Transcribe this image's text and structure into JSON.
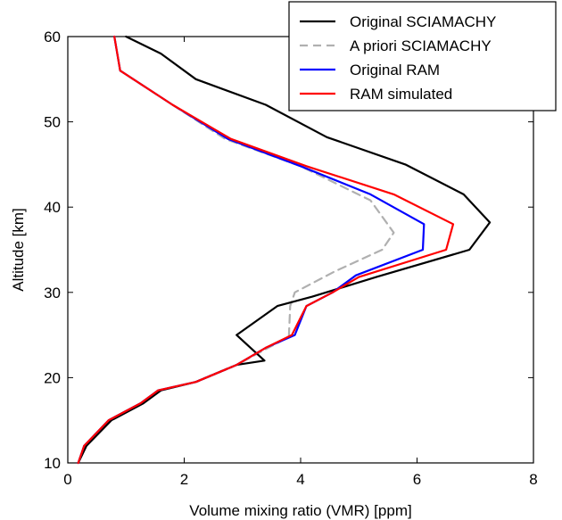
{
  "chart_data": {
    "type": "line",
    "xlabel": "Volume mixing ratio (VMR) [ppm]",
    "ylabel": "Altitude [km]",
    "xlim": [
      0,
      8
    ],
    "ylim": [
      10,
      60
    ],
    "xticks": [
      0,
      2,
      4,
      6,
      8
    ],
    "yticks": [
      10,
      20,
      30,
      40,
      50,
      60
    ],
    "grid": false,
    "legend_position": "top-right",
    "series": [
      {
        "name": "Original SCIAMACHY",
        "color": "#000000",
        "style": "solid",
        "x": [
          0.18,
          0.32,
          0.75,
          1.3,
          1.6,
          2.2,
          2.9,
          3.38,
          2.9,
          3.6,
          4.2,
          5.3,
          6.9,
          7.25,
          6.8,
          5.8,
          4.45,
          3.4,
          2.2,
          1.6,
          1.0
        ],
        "y": [
          10,
          12,
          15,
          17,
          18.5,
          19.5,
          21.5,
          22,
          25,
          28.4,
          29.5,
          31.8,
          35,
          38.2,
          41.5,
          45,
          48.2,
          52,
          55,
          58,
          60
        ]
      },
      {
        "name": "A priori SCIAMACHY",
        "color": "#b0b0b0",
        "style": "dashed",
        "x": [
          0.18,
          0.28,
          0.7,
          1.25,
          1.55,
          2.2,
          2.9,
          3.8,
          3.8,
          3.82,
          3.9,
          4.6,
          5.4,
          5.6,
          5.2,
          4.0,
          2.7,
          1.8,
          0.9,
          0.8
        ],
        "y": [
          10,
          12,
          15,
          17,
          18.5,
          19.5,
          21.5,
          24.8,
          25,
          28.4,
          30,
          32.5,
          35,
          37,
          40.8,
          44.8,
          48,
          52,
          56,
          60
        ]
      },
      {
        "name": "Original RAM",
        "color": "#0000ff",
        "style": "solid",
        "x": [
          0.18,
          0.28,
          0.7,
          1.25,
          1.55,
          2.2,
          2.9,
          3.4,
          3.9,
          4.1,
          4.55,
          4.95,
          6.1,
          6.12,
          5.2,
          4.0,
          2.75,
          1.8,
          0.9,
          0.8
        ],
        "y": [
          10,
          12,
          15,
          17,
          18.5,
          19.5,
          21.5,
          23.5,
          25,
          28.4,
          30,
          32,
          35,
          38,
          41.5,
          44.8,
          48,
          52,
          56,
          60
        ]
      },
      {
        "name": "RAM simulated",
        "color": "#ff0000",
        "style": "solid",
        "x": [
          0.18,
          0.28,
          0.7,
          1.25,
          1.55,
          2.2,
          2.9,
          3.4,
          3.85,
          4.1,
          4.55,
          5.0,
          6.5,
          6.62,
          5.6,
          4.1,
          2.8,
          1.8,
          0.9,
          0.8
        ],
        "y": [
          10,
          12,
          15,
          17,
          18.5,
          19.5,
          21.5,
          23.5,
          25,
          28.4,
          30,
          31.8,
          35,
          38,
          41.5,
          44.8,
          48,
          52,
          56,
          60
        ]
      }
    ]
  }
}
